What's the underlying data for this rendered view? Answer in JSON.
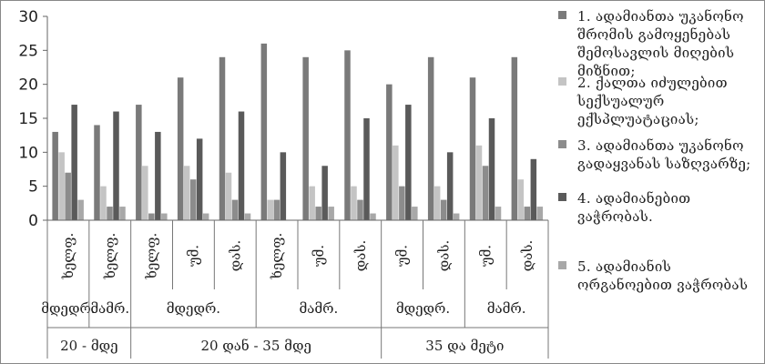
{
  "chart_data": {
    "type": "bar",
    "ylim": [
      0,
      30
    ],
    "yticks": [
      0,
      5,
      10,
      15,
      20,
      25,
      30
    ],
    "grid": false,
    "legend_position": "right",
    "categories": [
      {
        "level1": "ხელფ.",
        "level2": "მდედრ.",
        "level3": "20 - მდე"
      },
      {
        "level1": "ხელფ.",
        "level2": "მამრ.",
        "level3": "20 - მდე"
      },
      {
        "level1": "ხელფ.",
        "level2": "მდედრ.",
        "level3": "20 დან - 35 მდე"
      },
      {
        "level1": "უმ.",
        "level2": "მდედრ.",
        "level3": "20 დან - 35 მდე"
      },
      {
        "level1": "დას.",
        "level2": "მდედრ.",
        "level3": "20 დან - 35 მდე"
      },
      {
        "level1": "ხელფ.",
        "level2": "მამრ.",
        "level3": "20 დან - 35 მდე"
      },
      {
        "level1": "უმ.",
        "level2": "მამრ.",
        "level3": "20 დან - 35 მდე"
      },
      {
        "level1": "დას.",
        "level2": "მამრ.",
        "level3": "20 დან - 35 მდე"
      },
      {
        "level1": "უმ.",
        "level2": "მდედრ.",
        "level3": "35 და მეტი"
      },
      {
        "level1": "დას.",
        "level2": "მდედრ.",
        "level3": "35 და მეტი"
      },
      {
        "level1": "უმ.",
        "level2": "მამრ.",
        "level3": "35 და მეტი"
      },
      {
        "level1": "დას.",
        "level2": "მამრ.",
        "level3": "35 და მეტი"
      }
    ],
    "series": [
      {
        "name": "1. ადამიანთა უკანონო შრომის გამოყენებას შემოსავლის მიღების მიზნით;",
        "color": "#7a7a7a",
        "values": [
          13,
          14,
          17,
          21,
          24,
          26,
          24,
          25,
          20,
          24,
          21,
          24
        ]
      },
      {
        "name": "2. ქალთა იძულებით სექსუალურ ექსპლუატაციას;",
        "color": "#c4c4c4",
        "values": [
          10,
          5,
          8,
          8,
          7,
          3,
          5,
          5,
          11,
          5,
          11,
          6
        ]
      },
      {
        "name": "3. ადამიანთა უკანონო გადაყვანას საზღვარზე;",
        "color": "#8c8c8c",
        "values": [
          7,
          2,
          1,
          6,
          3,
          3,
          2,
          3,
          5,
          3,
          8,
          2
        ]
      },
      {
        "name": "4. ადამიანებით ვაჭრობას.",
        "color": "#5a5a5a",
        "values": [
          17,
          16,
          13,
          12,
          16,
          10,
          8,
          15,
          17,
          10,
          15,
          9
        ]
      },
      {
        "name": "5. ადამიანის ორგანოებით ვაჭრობას",
        "color": "#a8a8a8",
        "values": [
          3,
          2,
          1,
          1,
          1,
          0,
          2,
          1,
          2,
          1,
          2,
          2
        ]
      }
    ]
  }
}
